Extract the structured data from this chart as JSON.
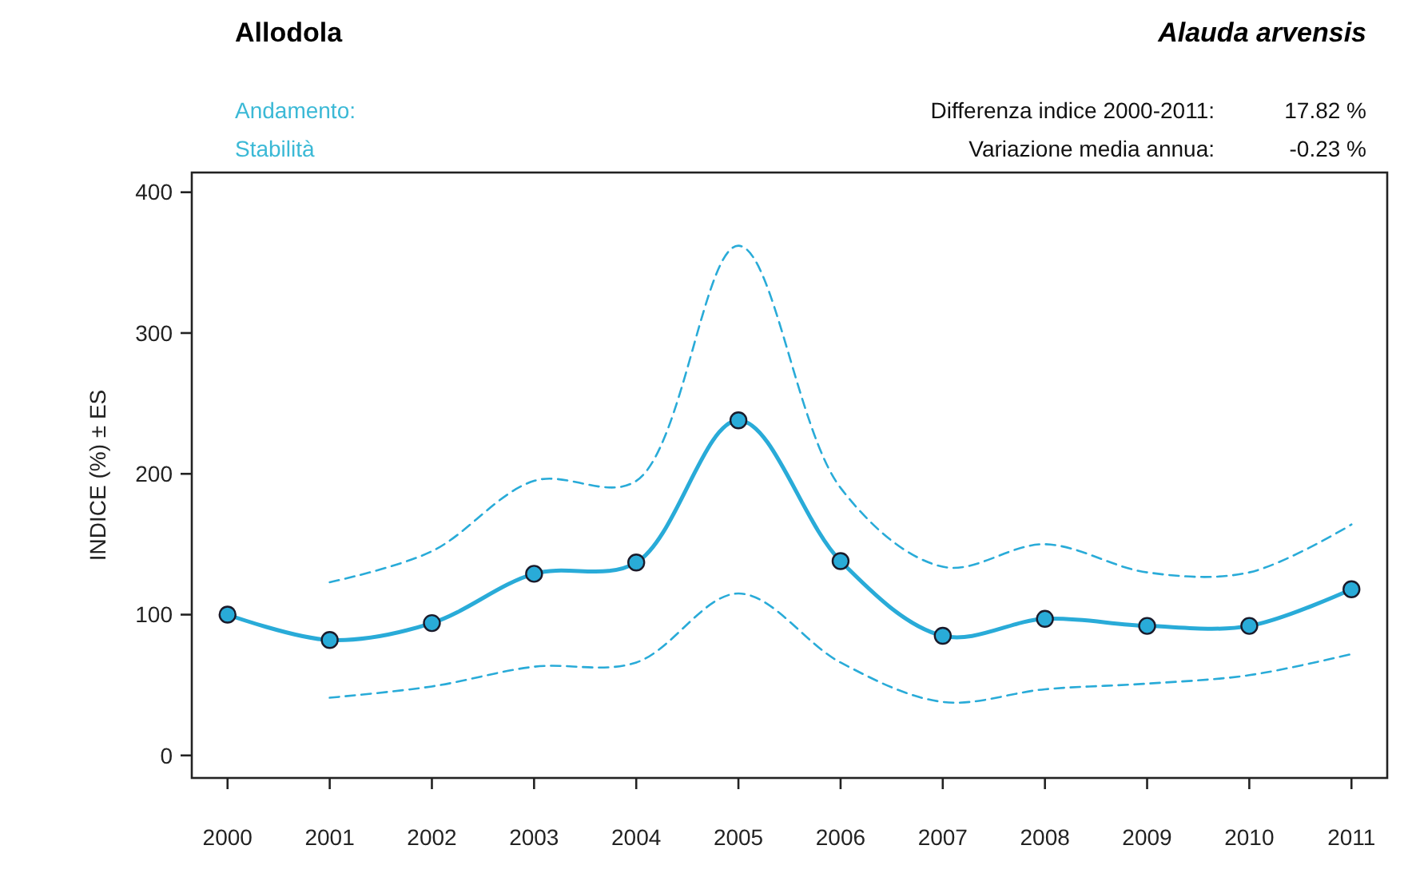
{
  "chart_data": {
    "type": "line",
    "title": "Allodola",
    "subtitle": "Alauda arvensis",
    "ylabel": "INDICE (%) ± ES",
    "annotations": [
      "Andamento:",
      "Stabilità",
      "Differenza indice 2000-2011:",
      "17.82 %",
      "Variazione media annua:",
      "-0.23 %"
    ],
    "categories": [
      "2000",
      "2001",
      "2002",
      "2003",
      "2004",
      "2005",
      "2006",
      "2007",
      "2008",
      "2009",
      "2010",
      "2011"
    ],
    "series": [
      {
        "color": "#29abd8",
        "values": [
          100,
          82,
          94,
          129,
          137,
          238,
          138,
          85,
          97,
          92,
          92,
          118
        ]
      },
      {
        "color": "#29abd8",
        "line_style": "dashed",
        "marker": "none",
        "values": [
          null,
          41,
          49,
          63,
          66,
          115,
          66,
          38,
          47,
          51,
          57,
          72
        ]
      },
      {
        "color": "#29abd8",
        "line_style": "dashed",
        "marker": "none",
        "values": [
          null,
          123,
          145,
          195,
          195,
          362,
          190,
          134,
          150,
          130,
          130,
          164
        ]
      }
    ],
    "ylim": [
      -16,
      414
    ],
    "yticks": [
      0,
      100,
      200,
      300,
      400
    ],
    "grid": false,
    "marker": "circle",
    "line_style": "solid"
  }
}
